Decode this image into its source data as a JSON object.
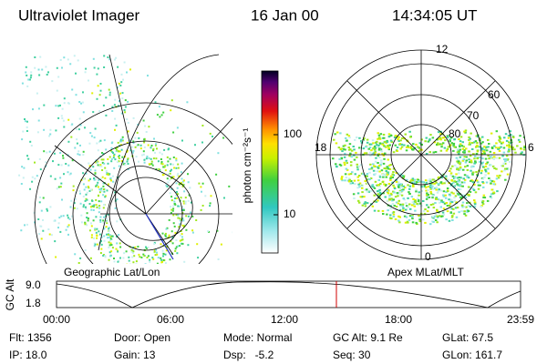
{
  "header": {
    "instrument": "Ultraviolet Imager",
    "date": "16 Jan 00",
    "time": "14:34:05 UT"
  },
  "colorbar": {
    "label": "photon cm⁻²s⁻¹",
    "ticks": [
      "100",
      "10"
    ]
  },
  "geo": {
    "caption": "Geographic Lat/Lon"
  },
  "polar": {
    "caption": "Apex MLat/MLT",
    "mlt_labels": [
      "12",
      "18",
      "6",
      "0"
    ],
    "lat_labels": [
      "60",
      "70",
      "80"
    ]
  },
  "orbit": {
    "axis_label": "GC Alt",
    "y_labels": [
      "9.0",
      "1.8"
    ],
    "x_labels": [
      "00:00",
      "06:00",
      "12:00",
      "18:00",
      "23:59"
    ]
  },
  "status": {
    "rows": [
      [
        "Flt: 1356",
        "Door: Open",
        "Mode: Normal",
        "GC Alt: 9.1 Re",
        "GLat: 67.5"
      ],
      [
        "IP: 18.0",
        "Gain: 13",
        "Dsp:   -5.2",
        "Seq: 30",
        "GLon: 161.7"
      ]
    ]
  }
}
